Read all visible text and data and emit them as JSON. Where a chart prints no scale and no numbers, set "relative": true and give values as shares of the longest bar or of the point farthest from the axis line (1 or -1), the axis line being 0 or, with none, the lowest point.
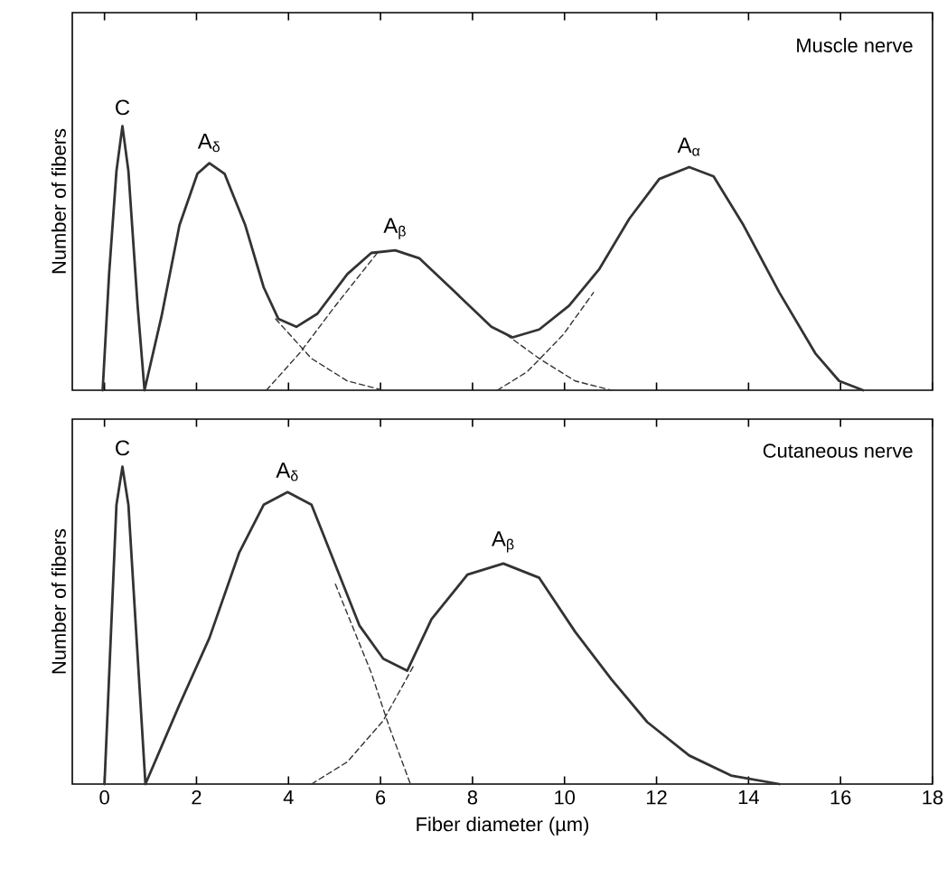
{
  "chart_data": [
    {
      "type": "line",
      "relative": true,
      "ylabel": "Number of fibers",
      "xlim": [
        -0.7,
        18
      ],
      "xticks": [
        0,
        2,
        4,
        6,
        8,
        10,
        12,
        14,
        16,
        18
      ],
      "tick_labels": false,
      "marker": "none",
      "annotations": [
        "Muscle nerve",
        {
          "text": "C",
          "x": 0.39,
          "y": 1.0
        },
        {
          "text": "A$_{δ}$",
          "x": 2.28,
          "y": 0.86
        },
        {
          "text": "A$_{β}$",
          "x": 6.32,
          "y": 0.53
        },
        {
          "text": "A$_{α}$",
          "x": 12.71,
          "y": 0.845
        }
      ],
      "series": [
        {
          "color": "#333333",
          "line_style": "solid",
          "x": [
            -0.04,
            0.1,
            0.26,
            0.39,
            0.52,
            0.72,
            0.87,
            1.24,
            1.63,
            2.02,
            2.28,
            2.61,
            3.06,
            3.46,
            3.78,
            4.17,
            4.63,
            5.28,
            5.8,
            6.32,
            6.84,
            7.63,
            8.41,
            8.87,
            9.45,
            10.1,
            10.76,
            11.41,
            12.06,
            12.71,
            13.24,
            13.89,
            14.67,
            15.45,
            15.97,
            16.49
          ],
          "values": [
            0,
            0.44,
            0.83,
            1.0,
            0.83,
            0.32,
            0,
            0.28,
            0.625,
            0.82,
            0.86,
            0.82,
            0.625,
            0.39,
            0.27,
            0.24,
            0.29,
            0.44,
            0.52,
            0.53,
            0.5,
            0.37,
            0.24,
            0.2,
            0.23,
            0.32,
            0.46,
            0.65,
            0.8,
            0.845,
            0.81,
            0.625,
            0.37,
            0.14,
            0.035,
            0
          ]
        },
        {
          "color": "#333333",
          "line_style": "dashed",
          "x": [
            3.72,
            4.5,
            5.28,
            6.06
          ],
          "values": [
            0.27,
            0.12,
            0.035,
            0
          ]
        },
        {
          "color": "#333333",
          "line_style": "dashed",
          "x": [
            3.52,
            4.24,
            5.02,
            5.93
          ],
          "values": [
            0,
            0.14,
            0.32,
            0.52
          ]
        },
        {
          "color": "#333333",
          "line_style": "dashed",
          "x": [
            8.74,
            9.45,
            10.23,
            11.02
          ],
          "values": [
            0.21,
            0.12,
            0.035,
            0
          ]
        },
        {
          "color": "#333333",
          "line_style": "dashed",
          "x": [
            8.54,
            9.19,
            9.97,
            10.63
          ],
          "values": [
            0,
            0.07,
            0.21,
            0.37
          ]
        }
      ]
    },
    {
      "type": "line",
      "relative": true,
      "ylabel": "Number of fibers",
      "xlabel": "Fiber diameter (µm)",
      "xlim": [
        -0.7,
        18
      ],
      "xticks": [
        0,
        2,
        4,
        6,
        8,
        10,
        12,
        14,
        16,
        18
      ],
      "tick_labels": "x",
      "marker": "none",
      "annotations": [
        "Cutaneous nerve",
        {
          "text": "C",
          "x": 0.39,
          "y": 1.0
        },
        {
          "text": "A$_{δ}$",
          "x": 3.98,
          "y": 0.92
        },
        {
          "text": "A$_{β}$",
          "x": 8.67,
          "y": 0.695
        }
      ],
      "series": [
        {
          "color": "#333333",
          "line_style": "solid",
          "x": [
            0,
            0.26,
            0.39,
            0.52,
            0.89,
            1.63,
            2.28,
            2.93,
            3.46,
            3.98,
            4.5,
            5.02,
            5.54,
            6.06,
            6.58,
            7.11,
            7.89,
            8.67,
            9.45,
            10.23,
            11.02,
            11.8,
            12.71,
            13.62,
            14.67
          ],
          "values": [
            0,
            0.88,
            1.0,
            0.88,
            0,
            0.25,
            0.46,
            0.73,
            0.88,
            0.92,
            0.88,
            0.69,
            0.5,
            0.395,
            0.357,
            0.52,
            0.66,
            0.695,
            0.65,
            0.48,
            0.33,
            0.195,
            0.09,
            0.027,
            0
          ]
        },
        {
          "color": "#333333",
          "line_style": "dashed",
          "x": [
            5.02,
            5.8,
            6.19,
            6.65
          ],
          "values": [
            0.63,
            0.35,
            0.18,
            0
          ]
        },
        {
          "color": "#333333",
          "line_style": "dashed",
          "x": [
            4.5,
            5.28,
            6.06,
            6.71
          ],
          "values": [
            0,
            0.07,
            0.2,
            0.37
          ]
        }
      ]
    }
  ]
}
